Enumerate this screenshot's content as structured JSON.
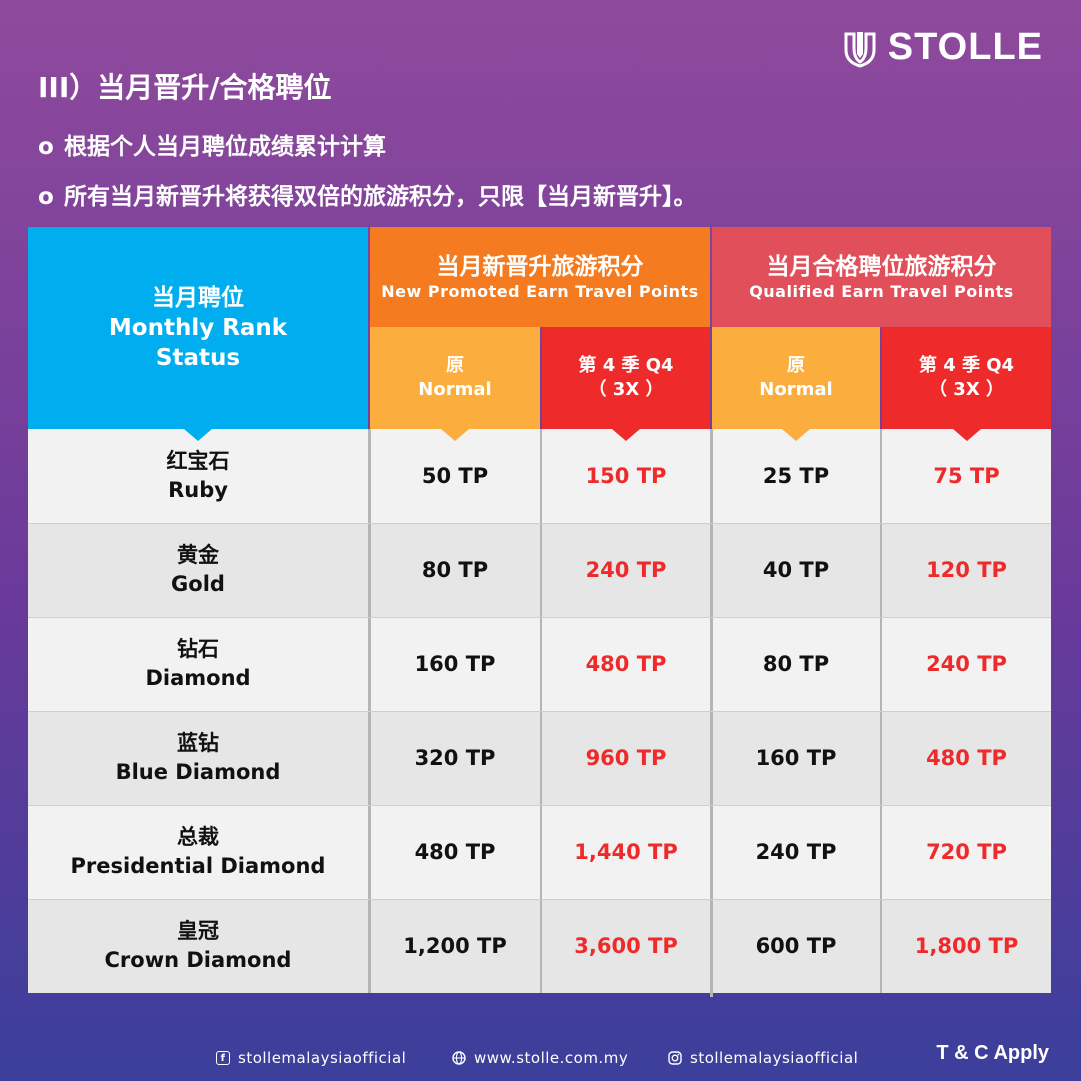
{
  "brand": {
    "name": "STOLLE",
    "icon": "stolle-logo-icon",
    "color_bg_top": "#8f4a9c",
    "color_bg_bottom": "#3b3f9b"
  },
  "section_title": "III）当月晋升/合格聘位",
  "bullets": [
    "根据个人当月聘位成绩累计计算",
    "所有当月新晋升将获得双倍的旅游积分，只限【当月新晋升】。"
  ],
  "bullet_marker": "o",
  "table": {
    "rank_header": {
      "cn": "当月聘位",
      "en_line1": "Monthly Rank",
      "en_line2": "Status",
      "color": "#00aeef"
    },
    "group_new": {
      "cn": "当月新晋升旅游积分",
      "en": "New Promoted Earn Travel Points",
      "color": "#f47b20"
    },
    "group_qualified": {
      "cn": "当月合格聘位旅游积分",
      "en": "Qualified Earn Travel Points",
      "color": "#e14f5a"
    },
    "sub_normal": {
      "cn": "原",
      "en": "Normal"
    },
    "sub_q4": {
      "cn": "第 4 季 Q4",
      "en": "（ 3X ）"
    },
    "colors": {
      "normal": "#fbad3e",
      "q4": "#ee2a2a"
    },
    "rows": [
      {
        "cn": "红宝石",
        "en": "Ruby",
        "new_normal": "50 TP",
        "new_q4": "150 TP",
        "qual_normal": "25 TP",
        "qual_q4": "75 TP"
      },
      {
        "cn": "黄金",
        "en": "Gold",
        "new_normal": "80 TP",
        "new_q4": "240 TP",
        "qual_normal": "40 TP",
        "qual_q4": "120 TP"
      },
      {
        "cn": "钻石",
        "en": "Diamond",
        "new_normal": "160 TP",
        "new_q4": "480 TP",
        "qual_normal": "80 TP",
        "qual_q4": "240 TP"
      },
      {
        "cn": "蓝钻",
        "en": "Blue Diamond",
        "new_normal": "320 TP",
        "new_q4": "960 TP",
        "qual_normal": "160 TP",
        "qual_q4": "480 TP"
      },
      {
        "cn": "总裁",
        "en": "Presidential Diamond",
        "new_normal": "480 TP",
        "new_q4": "1,440 TP",
        "qual_normal": "240 TP",
        "qual_q4": "720 TP"
      },
      {
        "cn": "皇冠",
        "en": "Crown Diamond",
        "new_normal": "1,200 TP",
        "new_q4": "3,600 TP",
        "qual_normal": "600 TP",
        "qual_q4": "1,800 TP"
      }
    ]
  },
  "footer": {
    "facebook": {
      "icon": "facebook-icon",
      "text": "stollemalaysiaofficial"
    },
    "web": {
      "icon": "globe-icon",
      "text": "www.stolle.com.my"
    },
    "instagram": {
      "icon": "instagram-icon",
      "text": "stollemalaysiaofficial"
    },
    "tc": "T & C Apply"
  }
}
